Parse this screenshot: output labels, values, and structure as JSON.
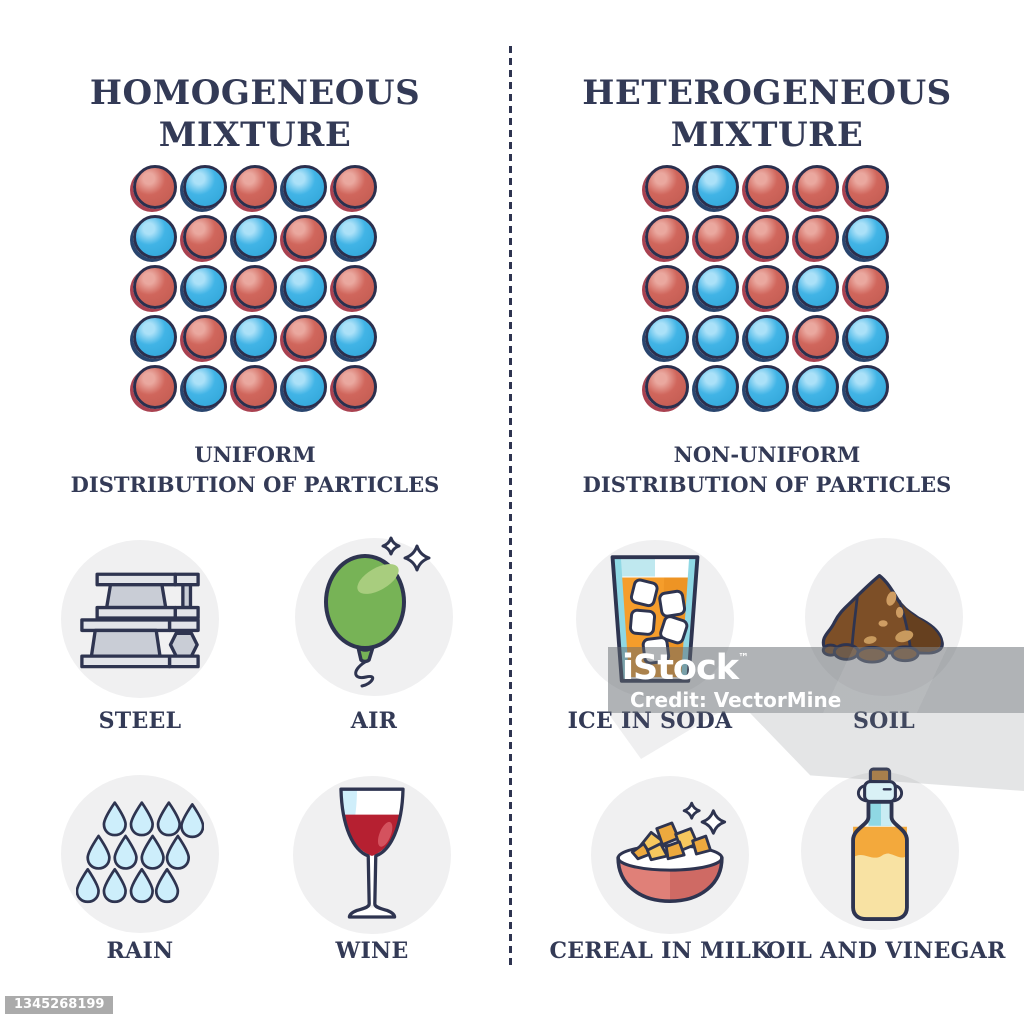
{
  "left_panel": {
    "title": "HOMOGENEOUS\nMIXTURE",
    "caption": "UNIFORM\nDISTRIBUTION OF PARTICLES",
    "grid_rows": [
      "RBRBR",
      "BRBRB",
      "RBRBR",
      "BRBRB",
      "RBRBR"
    ],
    "examples": [
      {
        "id": "steel",
        "label": "STEEL"
      },
      {
        "id": "air",
        "label": "AIR"
      },
      {
        "id": "rain",
        "label": "RAIN"
      },
      {
        "id": "wine",
        "label": "WINE"
      }
    ]
  },
  "right_panel": {
    "title": "HETEROGENEOUS\nMIXTURE",
    "caption": "NON-UNIFORM\nDISTRIBUTION OF PARTICLES",
    "grid_rows": [
      "RBRRR",
      "RRRRB",
      "RBRBR",
      "BBBRB",
      "RBBBB"
    ],
    "examples": [
      {
        "id": "ice_in_soda",
        "label": "ICE IN SODA"
      },
      {
        "id": "soil",
        "label": "SOIL"
      },
      {
        "id": "cereal_in_milk",
        "label": "CEREAL IN MILK"
      },
      {
        "id": "oil_and_vinegar",
        "label": "OIL AND VINEGAR"
      }
    ]
  },
  "watermark": {
    "brand": "iStock",
    "tm": "™",
    "credit": "Credit: VectorMine",
    "image_id": "1345268199"
  },
  "colors": {
    "text_navy": "#333a56",
    "outline_navy": "#2e3450",
    "particle_outline": "#2b2f4e",
    "particle_red": "#d0665c",
    "particle_red_highlight": "#eaa89f",
    "particle_red_shadow": "#a94150",
    "particle_blue": "#41b4e6",
    "particle_blue_highlight": "#abe1f8",
    "particle_blue_shadow": "#29456e",
    "circle_bg": "#f0f0f1",
    "steel_light": "#e2e4e9",
    "steel_mid": "#c9cdd6",
    "balloon_green": "#77b356",
    "balloon_green_light": "#a8cd7e",
    "rain_blue": "#cdeefb",
    "wine_red": "#b62031",
    "wine_highlight": "#d4525e",
    "glass_blue": "#cfeefa",
    "soda_orange": "#f59d2b",
    "soda_teal": "#8fd8e4",
    "soda_teal_light": "#bfe8ef",
    "soil_brown": "#7d4f27",
    "soil_brown_dark": "#66401f",
    "soil_tan": "#cf9d63",
    "bowl_pink": "#e08078",
    "bowl_pink_dark": "#cf6a64",
    "cereal_gold": "#f6c75e",
    "cereal_gold_dark": "#eda93e",
    "oil_orange": "#f3a93c",
    "vinegar_yellow": "#f8e2a3",
    "cork_brown": "#b5803f",
    "watermark_band": "rgba(97,104,109,0.5)",
    "badge_gray": "#ababab"
  }
}
